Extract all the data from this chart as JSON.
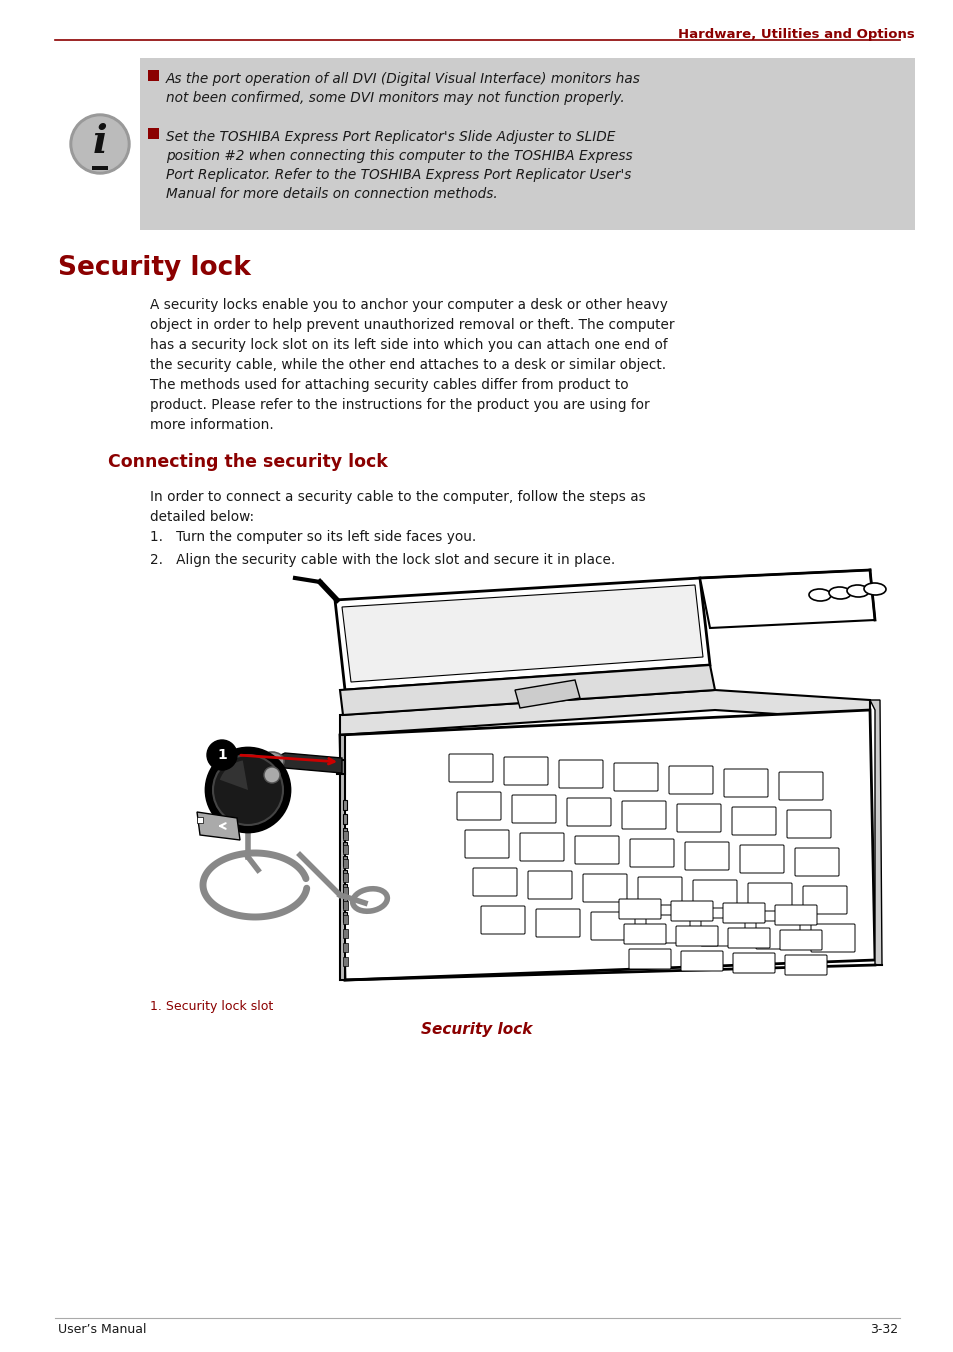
{
  "page_title": "Hardware, Utilities and Options",
  "title_color": "#8B0000",
  "line_color": "#8B0000",
  "bg_color": "#ffffff",
  "info_bg_color": "#cccccc",
  "section_title": "Security lock",
  "subsection_title": "Connecting the security lock",
  "section_title_color": "#8B0000",
  "body_text_color": "#1a1a1a",
  "note_text_color": "#1a1a1a",
  "footer_left": "User’s Manual",
  "footer_right": "3-32",
  "info_bullet1": "As the port operation of all DVI (Digital Visual Interface) monitors has\nnot been confirmed, some DVI monitors may not function properly.",
  "info_bullet2": "Set the TOSHIBA Express Port Replicator's Slide Adjuster to SLIDE\nposition #2 when connecting this computer to the TOSHIBA Express\nPort Replicator. Refer to the TOSHIBA Express Port Replicator User's\nManual for more details on connection methods.",
  "section_body": "A security locks enable you to anchor your computer a desk or other heavy\nobject in order to help prevent unauthorized removal or theft. The computer\nhas a security lock slot on its left side into which you can attach one end of\nthe security cable, while the other end attaches to a desk or similar object.\nThe methods used for attaching security cables differ from product to\nproduct. Please refer to the instructions for the product you are using for\nmore information.",
  "connecting_intro": "In order to connect a security cable to the computer, follow the steps as\ndetailed below:",
  "step1": "Turn the computer so its left side faces you.",
  "step2": "Align the security cable with the lock slot and secure it in place.",
  "label_caption": "1. Security lock slot",
  "figure_caption": "Security lock",
  "arrow_color": "#cc0000",
  "bullet_color": "#8B0000"
}
